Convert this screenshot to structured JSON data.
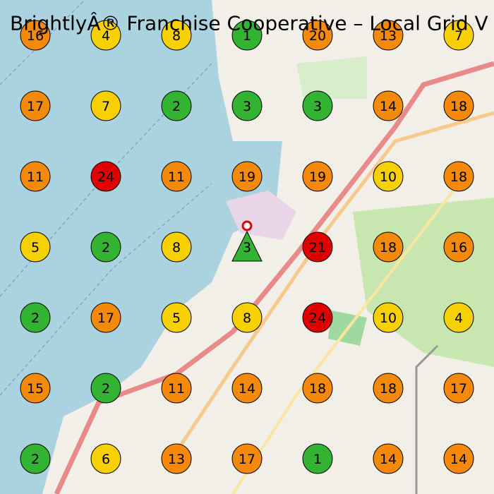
{
  "title": "BrightlyÂ® Franchise Cooperative – Local Grid V",
  "grid": {
    "rows": [
      [
        {
          "value": 16,
          "color": "#f58a0a"
        },
        {
          "value": 4,
          "color": "#f7d000"
        },
        {
          "value": 8,
          "color": "#f7d000"
        },
        {
          "value": 1,
          "color": "#32b432"
        },
        {
          "value": 20,
          "color": "#f58a0a"
        },
        {
          "value": 13,
          "color": "#f58a0a"
        },
        {
          "value": 7,
          "color": "#f7d000"
        }
      ],
      [
        {
          "value": 17,
          "color": "#f58a0a"
        },
        {
          "value": 7,
          "color": "#f7d000"
        },
        {
          "value": 2,
          "color": "#32b432"
        },
        {
          "value": 3,
          "color": "#32b432"
        },
        {
          "value": 3,
          "color": "#32b432"
        },
        {
          "value": 14,
          "color": "#f58a0a"
        },
        {
          "value": 18,
          "color": "#f58a0a"
        }
      ],
      [
        {
          "value": 11,
          "color": "#f58a0a"
        },
        {
          "value": 24,
          "color": "#e00000"
        },
        {
          "value": 11,
          "color": "#f58a0a"
        },
        {
          "value": 19,
          "color": "#f58a0a"
        },
        {
          "value": 19,
          "color": "#f58a0a"
        },
        {
          "value": 10,
          "color": "#f7d000"
        },
        {
          "value": 18,
          "color": "#f58a0a"
        }
      ],
      [
        {
          "value": 5,
          "color": "#f7d000"
        },
        {
          "value": 2,
          "color": "#32b432"
        },
        {
          "value": 8,
          "color": "#f7d000"
        },
        {
          "value": 3,
          "color": "#32b432",
          "shape": "triangle"
        },
        {
          "value": 21,
          "color": "#e00000"
        },
        {
          "value": 18,
          "color": "#f58a0a"
        },
        {
          "value": 16,
          "color": "#f58a0a"
        }
      ],
      [
        {
          "value": 2,
          "color": "#32b432"
        },
        {
          "value": 17,
          "color": "#f58a0a"
        },
        {
          "value": 5,
          "color": "#f7d000"
        },
        {
          "value": 8,
          "color": "#f7d000"
        },
        {
          "value": 24,
          "color": "#e00000"
        },
        {
          "value": 10,
          "color": "#f7d000"
        },
        {
          "value": 4,
          "color": "#f7d000"
        }
      ],
      [
        {
          "value": 15,
          "color": "#f58a0a"
        },
        {
          "value": 2,
          "color": "#32b432"
        },
        {
          "value": 11,
          "color": "#f58a0a"
        },
        {
          "value": 14,
          "color": "#f58a0a"
        },
        {
          "value": 18,
          "color": "#f58a0a"
        },
        {
          "value": 18,
          "color": "#f58a0a"
        },
        {
          "value": 17,
          "color": "#f58a0a"
        }
      ],
      [
        {
          "value": 2,
          "color": "#32b432"
        },
        {
          "value": 6,
          "color": "#f7d000"
        },
        {
          "value": 13,
          "color": "#f58a0a"
        },
        {
          "value": 17,
          "color": "#f58a0a"
        },
        {
          "value": 1,
          "color": "#32b432"
        },
        {
          "value": 14,
          "color": "#f58a0a"
        },
        {
          "value": 14,
          "color": "#f58a0a"
        }
      ]
    ]
  }
}
